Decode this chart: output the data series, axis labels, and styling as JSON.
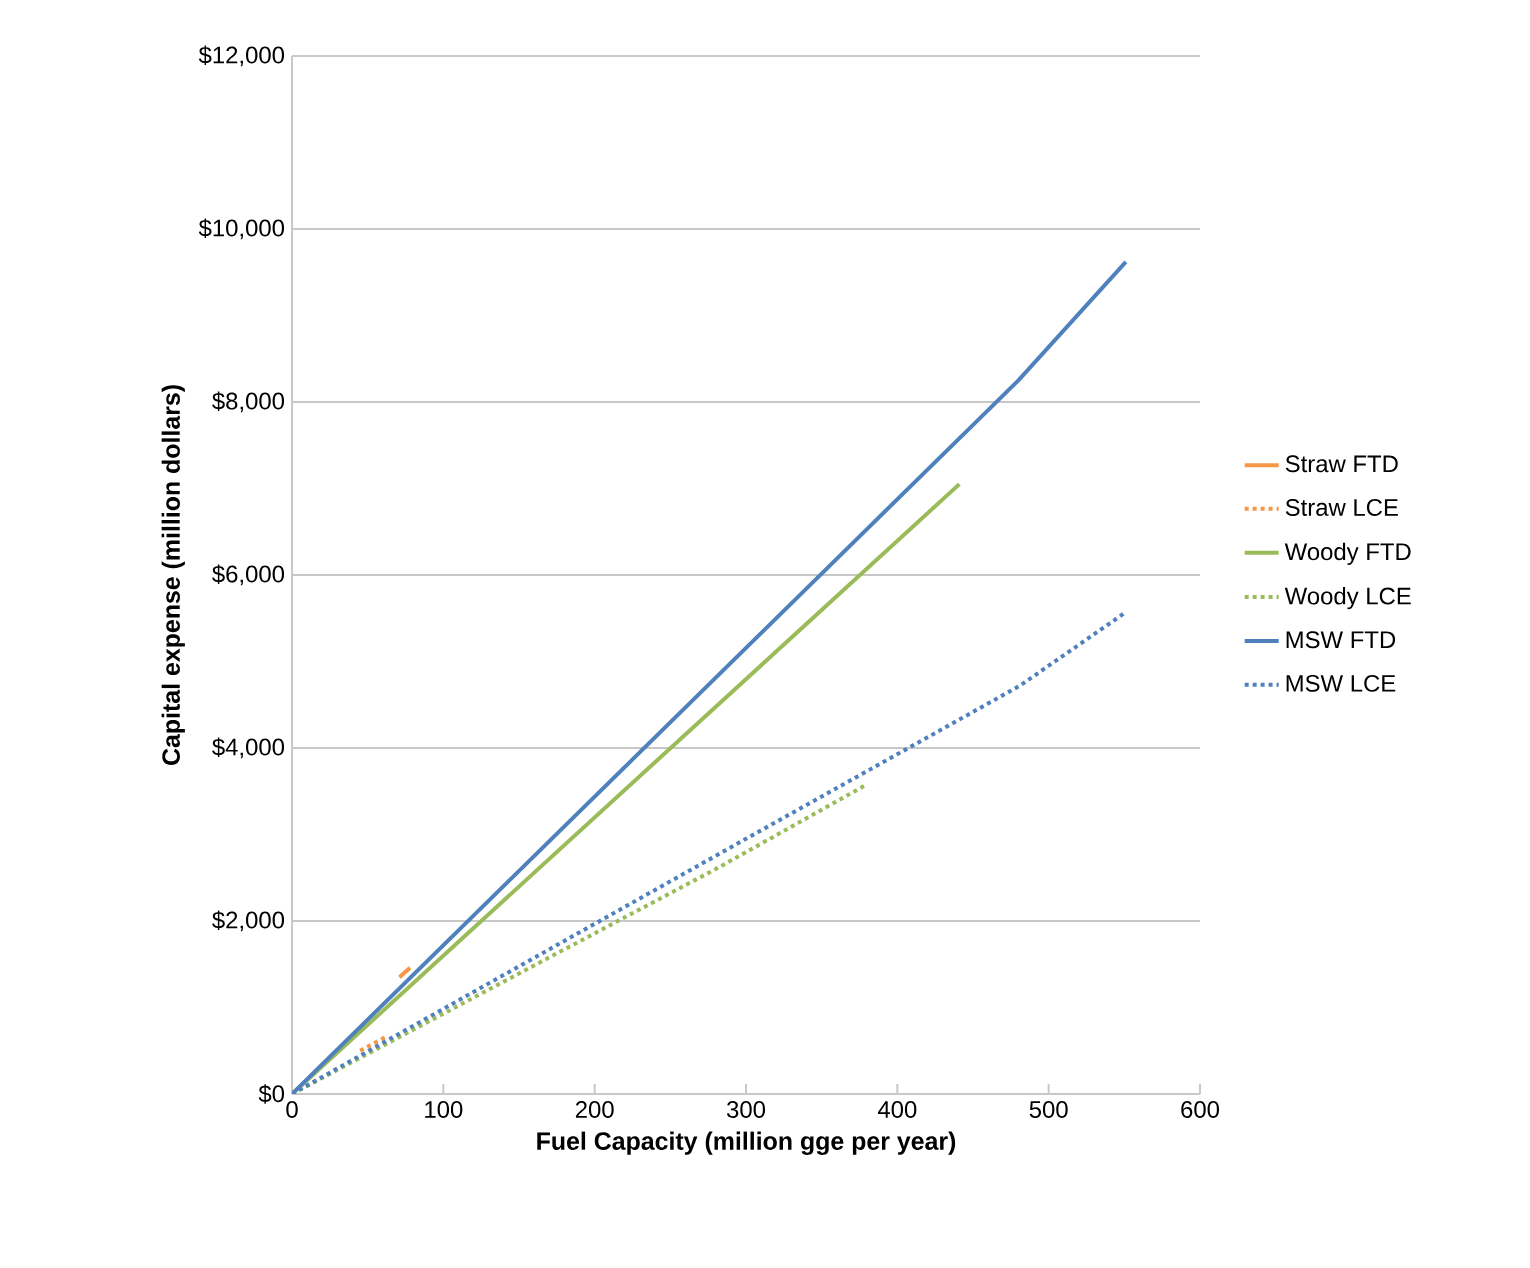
{
  "chart_data": {
    "type": "line",
    "xlabel": "Fuel Capacity (million gge per year)",
    "ylabel": "Capital expense (million dollars)",
    "xlim": [
      0,
      600
    ],
    "xticks": [
      0,
      100,
      200,
      300,
      400,
      500,
      600
    ],
    "ylim": [
      0,
      12000
    ],
    "yticks": [
      {
        "value": 0,
        "label": "$0"
      },
      {
        "value": 2000,
        "label": "$2,000"
      },
      {
        "value": 4000,
        "label": "$4,000"
      },
      {
        "value": 6000,
        "label": "$6,000"
      },
      {
        "value": 8000,
        "label": "$8,000"
      },
      {
        "value": 10000,
        "label": "$10,000"
      },
      {
        "value": 12000,
        "label": "$12,000"
      }
    ],
    "grid": "y",
    "legend": "right",
    "marker": "none",
    "series": [
      {
        "name": "Straw FTD",
        "color": "#f79646",
        "line_style": "solid",
        "x": [
          71,
          78
        ],
        "values": [
          1350,
          1460
        ]
      },
      {
        "name": "Straw LCE",
        "color": "#f79646",
        "line_style": "dotted",
        "x": [
          45,
          62
        ],
        "values": [
          500,
          660
        ]
      },
      {
        "name": "Woody FTD",
        "color": "#9bbb59",
        "line_style": "solid",
        "x": [
          0,
          441
        ],
        "values": [
          0,
          7050
        ]
      },
      {
        "name": "Woody LCE",
        "color": "#9bbb59",
        "line_style": "dotted",
        "x": [
          0,
          280,
          378
        ],
        "values": [
          0,
          2600,
          3560
        ]
      },
      {
        "name": "MSW FTD",
        "color": "#4f81bd",
        "line_style": "solid",
        "x": [
          0,
          480,
          551
        ],
        "values": [
          0,
          8250,
          9620
        ]
      },
      {
        "name": "MSW LCE",
        "color": "#4f81bd",
        "line_style": "dotted",
        "x": [
          0,
          300,
          481,
          551
        ],
        "values": [
          0,
          2950,
          4720,
          5570
        ]
      }
    ]
  }
}
